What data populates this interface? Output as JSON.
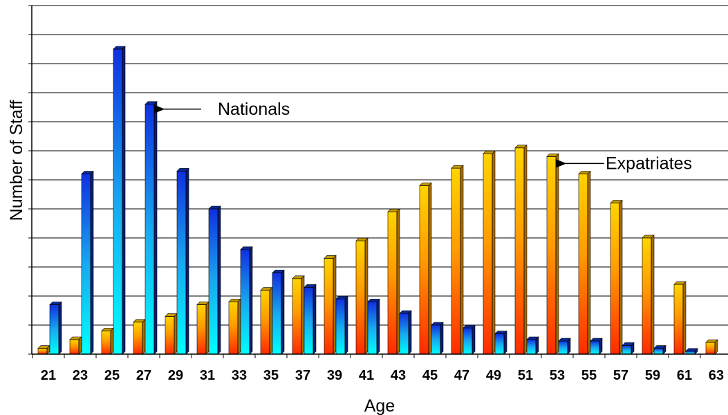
{
  "chart_data": {
    "type": "bar",
    "xlabel": "Age",
    "ylabel": "Number of Staff",
    "ylim": [
      0,
      12
    ],
    "grid": true,
    "legend": "none",
    "categories": [
      "21",
      "23",
      "25",
      "27",
      "29",
      "31",
      "33",
      "35",
      "37",
      "39",
      "41",
      "43",
      "45",
      "47",
      "49",
      "51",
      "53",
      "55",
      "57",
      "59",
      "61",
      "63"
    ],
    "series": [
      {
        "name": "Expatriates",
        "values": [
          0.2,
          0.5,
          0.8,
          1.1,
          1.3,
          1.7,
          1.8,
          2.2,
          2.6,
          3.3,
          3.9,
          4.9,
          5.8,
          6.4,
          6.9,
          7.1,
          6.8,
          6.2,
          5.2,
          4.0,
          2.4,
          0.4
        ]
      },
      {
        "name": "Nationals",
        "values": [
          1.7,
          6.2,
          10.5,
          8.6,
          6.3,
          5.0,
          3.6,
          2.8,
          2.3,
          1.9,
          1.8,
          1.4,
          1.0,
          0.9,
          0.7,
          0.5,
          0.45,
          0.45,
          0.3,
          0.2,
          0.1,
          0
        ]
      }
    ],
    "annotations": [
      {
        "text": "Nationals",
        "series": "Nationals",
        "category": "27"
      },
      {
        "text": "Expatriates",
        "series": "Expatriates",
        "category": "53"
      }
    ],
    "colors": {
      "expat_top": "#ffd400",
      "expat_bottom": "#ff2a00",
      "nat_top": "#1030e0",
      "nat_bottom": "#00ffff",
      "gridline": "#000000"
    }
  }
}
